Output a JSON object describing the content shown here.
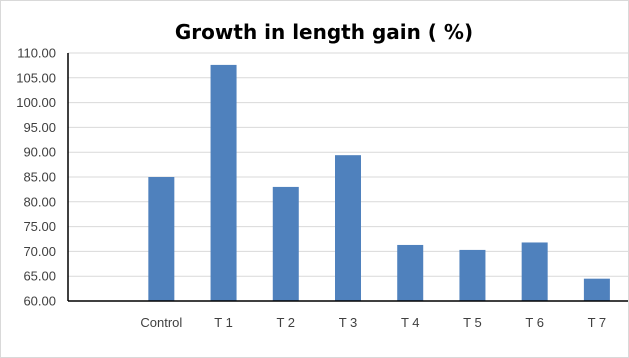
{
  "chart_data": {
    "type": "bar",
    "title": "Growth in length gain ( %)",
    "xlabel": "",
    "ylabel": "",
    "categories": [
      "",
      "Control",
      "T 1",
      "T 2",
      "T 3",
      "T 4",
      "T 5",
      "T 6",
      "T 7"
    ],
    "values": [
      null,
      85.0,
      107.6,
      83.0,
      89.4,
      71.3,
      70.3,
      71.8,
      64.5
    ],
    "ylim": [
      60,
      110
    ],
    "ytick_step": 5,
    "ytick_labels": [
      "60.00",
      "65.00",
      "70.00",
      "75.00",
      "80.00",
      "85.00",
      "90.00",
      "95.00",
      "100.00",
      "105.00",
      "110.00"
    ],
    "grid": true,
    "legend": "none",
    "bar_color": "#4f81bd",
    "grid_color": "#d9d9d9",
    "axis_color": "#000000"
  }
}
